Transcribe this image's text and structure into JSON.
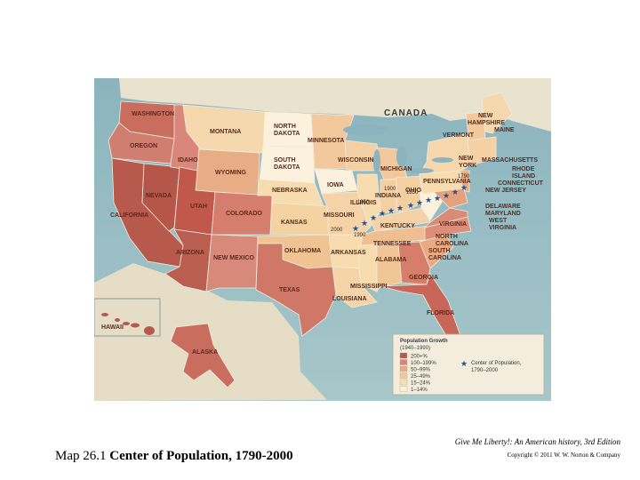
{
  "caption": {
    "map_number": "Map 26.1",
    "title": "Center of Population, 1790-2000"
  },
  "credit": {
    "book": "Give Me Liberty!: An American history, 3rd Edition",
    "copyright": "Copyright © 2011 W. W. Norton & Company"
  },
  "map": {
    "country_labels": [
      "CANADA"
    ],
    "states": {
      "washington": "WASHINGTON",
      "oregon": "OREGON",
      "california": "CALIFORNIA",
      "nevada": "NEVADA",
      "idaho": "IDAHO",
      "montana": "MONTANA",
      "wyoming": "WYOMING",
      "utah": "UTAH",
      "arizona": "ARIZONA",
      "colorado": "COLORADO",
      "new_mexico": "NEW MEXICO",
      "north_dakota_1": "NORTH",
      "north_dakota_2": "DAKOTA",
      "south_dakota_1": "SOUTH",
      "south_dakota_2": "DAKOTA",
      "nebraska": "NEBRASKA",
      "kansas": "KANSAS",
      "oklahoma": "OKLAHOMA",
      "texas": "TEXAS",
      "minnesota": "MINNESOTA",
      "iowa": "IOWA",
      "missouri": "MISSOURI",
      "arkansas": "ARKANSAS",
      "louisiana": "LOUISIANA",
      "wisconsin": "WISCONSIN",
      "illinois": "ILLINOIS",
      "michigan": "MICHIGAN",
      "indiana": "INDIANA",
      "ohio": "OHIO",
      "kentucky": "KENTUCKY",
      "tennessee": "TENNESSEE",
      "mississippi": "MISSISSIPPI",
      "alabama": "ALABAMA",
      "georgia": "GEORGIA",
      "florida": "FLORIDA",
      "south_carolina_1": "SOUTH",
      "south_carolina_2": "CAROLINA",
      "north_carolina_1": "NORTH",
      "north_carolina_2": "CAROLINA",
      "virginia": "VIRGINIA",
      "west_virginia_1": "WEST",
      "west_virginia_2": "VIRGINIA",
      "maryland": "MARYLAND",
      "delaware": "DELAWARE",
      "new_jersey": "NEW JERSEY",
      "pennsylvania": "PENNSYLVANIA",
      "new_york_1": "NEW",
      "new_york_2": "YORK",
      "connecticut": "CONNECTICUT",
      "rhode_island_1": "RHODE",
      "rhode_island_2": "ISLAND",
      "massachusetts": "MASSACHUSETTS",
      "vermont": "VERMONT",
      "new_hampshire_1": "NEW",
      "new_hampshire_2": "HAMPSHIRE",
      "maine": "MAINE",
      "hawaii": "HAWAII",
      "alaska": "ALASKA"
    },
    "center_years": {
      "y1790": "1790",
      "y1850": "1850",
      "y1900": "1900",
      "y1950": "1950",
      "y1990": "1990",
      "y2000": "2000"
    },
    "legend": {
      "title": "Population Growth",
      "subtitle": "(1940–1990)",
      "items": [
        {
          "label": "200+%",
          "color": "#b9564a"
        },
        {
          "label": "100–199%",
          "color": "#d8847a"
        },
        {
          "label": "50–99%",
          "color": "#e9aa82"
        },
        {
          "label": "25–49%",
          "color": "#f1c69a"
        },
        {
          "label": "15–24%",
          "color": "#f7deb6"
        },
        {
          "label": "1–14%",
          "color": "#fbf1dd"
        }
      ],
      "center_label_1": "Center of Population,",
      "center_label_2": "1790–2000"
    }
  }
}
